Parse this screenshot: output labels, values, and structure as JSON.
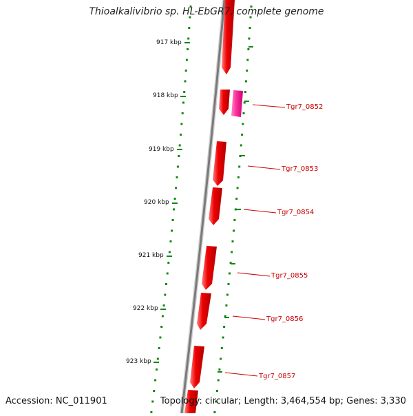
{
  "title": "Thioalkalivibrio sp. HL-EbGR7, complete genome",
  "accession": "Accession: NC_011901",
  "summary": "Topology: circular; Length: 3,464,554 bp; Genes: 3,330",
  "kbp_labels": [
    "917 kbp",
    "918 kbp",
    "919 kbp",
    "920 kbp",
    "921 kbp",
    "922 kbp",
    "923 kbp"
  ],
  "gene_labels": [
    "Tgr7_0852",
    "Tgr7_0853",
    "Tgr7_0854",
    "Tgr7_0855",
    "Tgr7_0856",
    "Tgr7_0857"
  ],
  "colors": {
    "backbone": "#8a8a8a",
    "gene": "#ee0000",
    "gene_highlight": "#ff3399",
    "tick": "#118811",
    "label": "#cc0000"
  }
}
